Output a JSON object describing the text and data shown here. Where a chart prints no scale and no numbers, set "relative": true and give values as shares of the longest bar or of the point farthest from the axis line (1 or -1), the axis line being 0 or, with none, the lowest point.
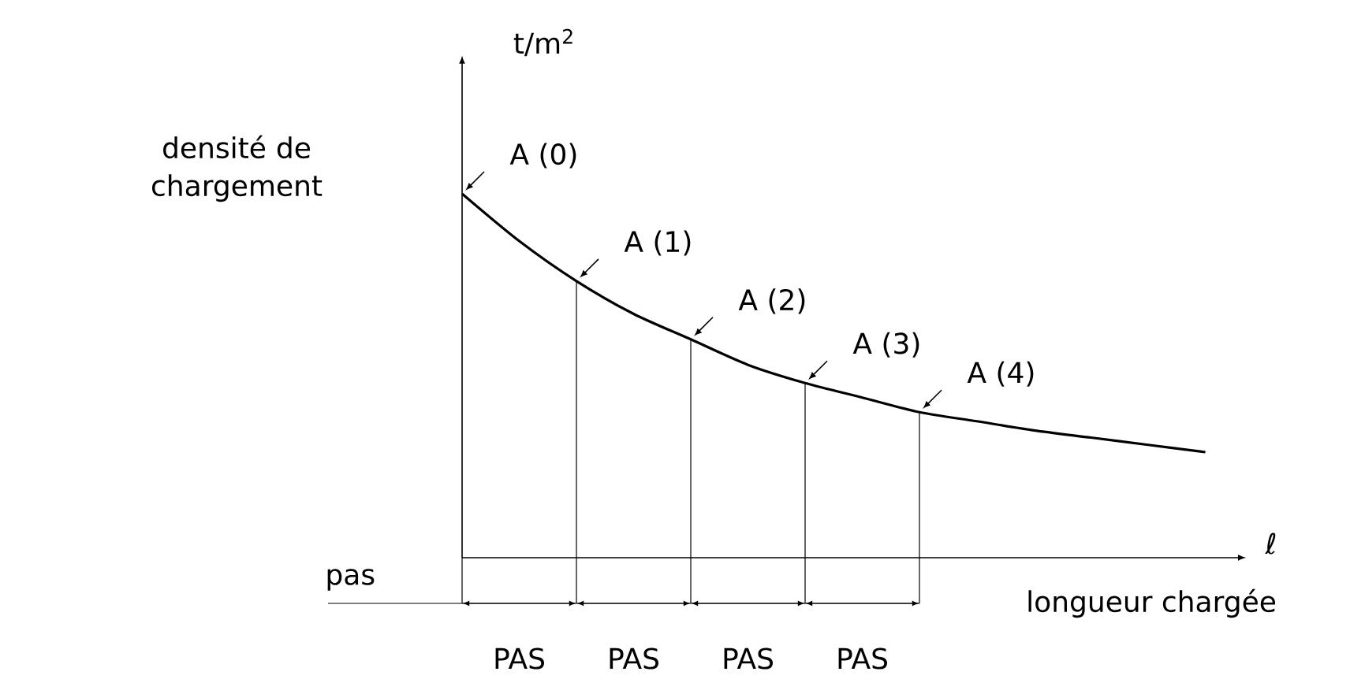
{
  "chart_data": {
    "type": "line",
    "relative": true,
    "categories": [
      null,
      null,
      null,
      null,
      null,
      null,
      null,
      null,
      null,
      null,
      null,
      null,
      null,
      null
    ],
    "series": [
      {
        "color": "#000000",
        "values": [
          1,
          0.87,
          0.76,
          0.67,
          0.6,
          0.53,
          0.48,
          0.44,
          0.4,
          0.375,
          0.35,
          0.33,
          0.31,
          0.29
        ]
      }
    ],
    "xlabel": "ℓ",
    "ylabel": "t/m$^{2}$",
    "marker": "none",
    "line_style": "solid",
    "annotations": [
      "densité de chargement",
      "A (0)",
      "A (1)",
      "A (2)",
      "A (3)",
      "A (4)",
      "pas",
      "longueur chargée",
      "PAS",
      "PAS",
      "PAS",
      "PAS"
    ]
  }
}
